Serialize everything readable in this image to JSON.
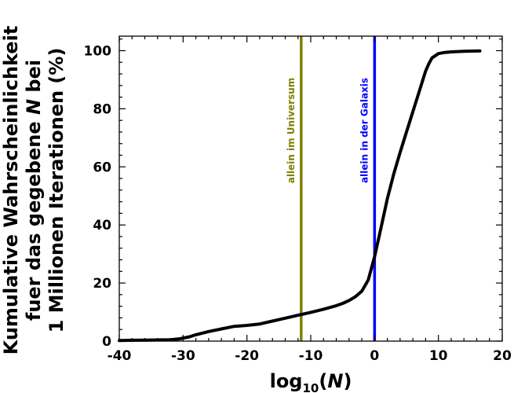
{
  "chart_data": {
    "type": "line",
    "xlabel_main": "log",
    "xlabel_sub": "10",
    "xlabel_var": "N",
    "ylabel_lines": [
      "Kumulative Wahrscheinlichkeit",
      "fuer das gegebene N bei",
      "1 Millionen Iterationen (%)"
    ],
    "xlim": [
      -40,
      20
    ],
    "ylim": [
      0,
      105
    ],
    "xticks": [
      -40,
      -30,
      -20,
      -10,
      0,
      10,
      20
    ],
    "yticks": [
      0,
      20,
      40,
      60,
      80,
      100
    ],
    "series": [
      {
        "color": "#000000",
        "x": [
          -40,
          -38,
          -36,
          -34,
          -32,
          -30.5,
          -29,
          -28,
          -26,
          -24,
          -22,
          -20,
          -18,
          -16,
          -14,
          -12,
          -10,
          -8,
          -6,
          -5,
          -4,
          -3,
          -2,
          -1,
          0,
          1,
          2,
          3,
          4,
          5,
          6,
          7,
          8,
          8.5,
          9,
          10,
          11,
          12,
          14,
          16.5
        ],
        "y": [
          0.2,
          0.3,
          0.35,
          0.4,
          0.5,
          0.8,
          1.5,
          2.2,
          3.3,
          4.2,
          5.1,
          5.4,
          5.9,
          6.9,
          7.9,
          8.9,
          9.9,
          11.0,
          12.2,
          13.0,
          14.0,
          15.3,
          17.2,
          21.0,
          29.0,
          39.0,
          49.0,
          57.5,
          65.0,
          72.0,
          79.0,
          86.0,
          93.0,
          95.5,
          97.5,
          99.0,
          99.4,
          99.6,
          99.8,
          99.9
        ]
      }
    ],
    "vlines": [
      {
        "x": -11.5,
        "color": "#808000",
        "label": "allein im Universum"
      },
      {
        "x": 0,
        "color": "#0000ff",
        "label": "allein in der Galaxis"
      }
    ],
    "grid": false,
    "legend": "none"
  }
}
